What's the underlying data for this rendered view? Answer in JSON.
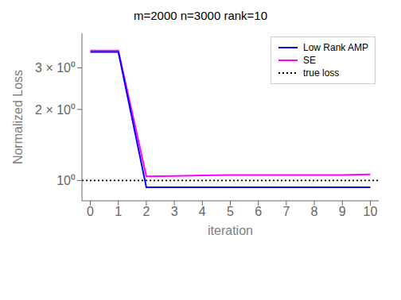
{
  "chart_data": {
    "type": "line",
    "title": "m=2000 n=3000 rank=10",
    "x_label": "iteration",
    "y_label": "Normalized Loss",
    "x": [
      0,
      1,
      2,
      3,
      4,
      5,
      6,
      7,
      8,
      9,
      10
    ],
    "series": [
      {
        "name": "Low Rank AMP",
        "color": "#0000ff",
        "line_style": "solid",
        "values": [
          3.5,
          3.5,
          0.935,
          0.935,
          0.935,
          0.935,
          0.935,
          0.935,
          0.935,
          0.935,
          0.935
        ]
      },
      {
        "name": "SE",
        "color": "#ff00ff",
        "line_style": "solid",
        "values": [
          3.55,
          3.55,
          1.04,
          1.045,
          1.05,
          1.055,
          1.055,
          1.055,
          1.055,
          1.055,
          1.06
        ]
      }
    ],
    "reference_lines": [
      {
        "name": "true loss",
        "y": 1.0,
        "color": "#000000",
        "line_style": "dotted"
      }
    ],
    "xlim": [
      -0.3,
      10.3
    ],
    "ylim": [
      0.82,
      4.2
    ],
    "xticks": [
      0,
      1,
      2,
      3,
      4,
      5,
      6,
      7,
      8,
      9,
      10
    ],
    "yticks": [
      {
        "value": 1.0,
        "label": "10⁰"
      },
      {
        "value": 2.0,
        "label": "2 × 10⁰"
      },
      {
        "value": 3.0,
        "label": "3 × 10⁰"
      }
    ],
    "log": "y",
    "grid": false,
    "legend": "upper right"
  }
}
